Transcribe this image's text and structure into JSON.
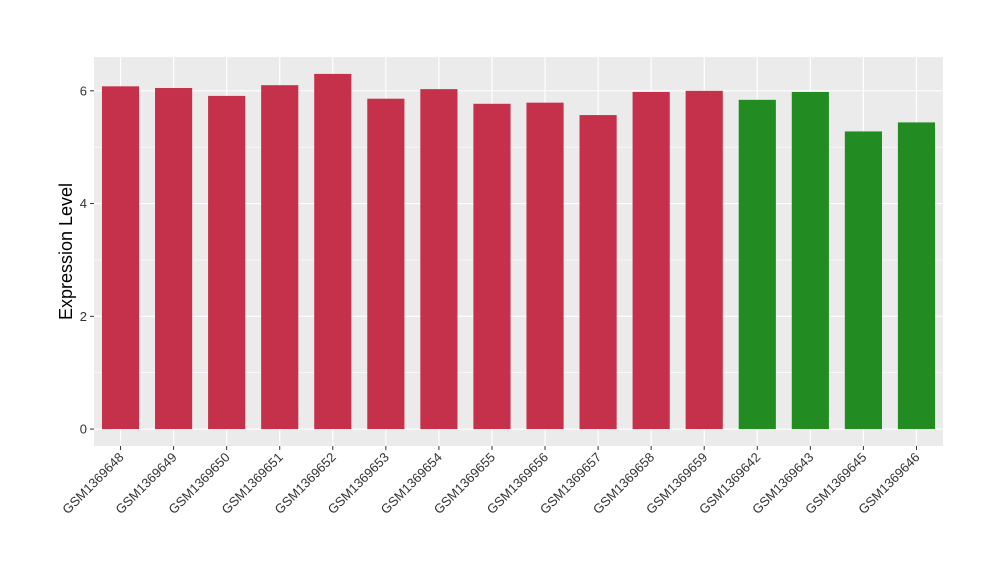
{
  "chart_data": {
    "type": "bar",
    "title": "",
    "xlabel": "",
    "ylabel": "Expression Level",
    "ylim": [
      -0.3,
      6.6
    ],
    "yticks": [
      0,
      2,
      4,
      6
    ],
    "grid": true,
    "categories": [
      "GSM1369648",
      "GSM1369649",
      "GSM1369650",
      "GSM1369651",
      "GSM1369652",
      "GSM1369653",
      "GSM1369654",
      "GSM1369655",
      "GSM1369656",
      "GSM1369657",
      "GSM1369658",
      "GSM1369659",
      "GSM1369642",
      "GSM1369643",
      "GSM1369645",
      "GSM1369646"
    ],
    "values": [
      6.08,
      6.05,
      5.91,
      6.1,
      6.3,
      5.86,
      6.03,
      5.77,
      5.79,
      5.57,
      5.98,
      6.0,
      5.84,
      5.98,
      5.28,
      5.44
    ],
    "bar_colors": [
      "#c5314a",
      "#c5314a",
      "#c5314a",
      "#c5314a",
      "#c5314a",
      "#c5314a",
      "#c5314a",
      "#c5314a",
      "#c5314a",
      "#c5314a",
      "#c5314a",
      "#c5314a",
      "#228b22",
      "#228b22",
      "#228b22",
      "#228b22"
    ],
    "panel_color": "#ebebeb",
    "grid_color": "#ffffff"
  }
}
